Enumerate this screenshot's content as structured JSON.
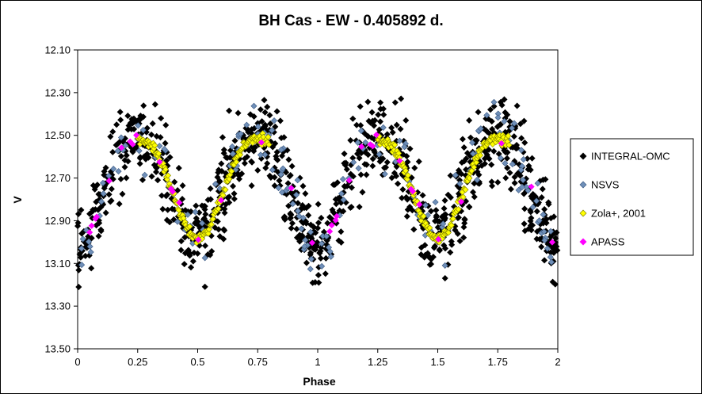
{
  "chart_data": {
    "type": "scatter",
    "title": "BH Cas - EW - 0.405892 d.",
    "xlabel": "Phase",
    "ylabel": "V",
    "xlim": [
      0,
      2
    ],
    "ylim": [
      12.1,
      13.5
    ],
    "y_inverted": true,
    "grid": false,
    "legend_position": "right",
    "x_ticks": [
      "0",
      "0.25",
      "0.5",
      "0.75",
      "1",
      "1.25",
      "1.5",
      "1.75",
      "2"
    ],
    "y_ticks": [
      "12.10",
      "12.30",
      "12.50",
      "12.70",
      "12.90",
      "13.10",
      "13.30",
      "13.50"
    ],
    "lightcurve_model": {
      "max_mag": 12.52,
      "primary_min_phase": 0.0,
      "primary_min_mag": 13.02,
      "secondary_min_phase": 0.5,
      "secondary_min_mag": 12.98,
      "period_days": 0.405892
    },
    "series": [
      {
        "name": "INTEGRAL-OMC",
        "color": "#000000",
        "marker": "diamond",
        "scatter_mag": 0.09,
        "points_per_cycle": 520
      },
      {
        "name": "NSVS",
        "color": "#6f8fb8",
        "marker": "diamond",
        "scatter_mag": 0.07,
        "points_per_cycle": 90
      },
      {
        "name": "Zola+, 2001",
        "color": "#ffff00",
        "marker": "diamond",
        "scatter_mag": 0.012,
        "points_per_cycle": 170
      },
      {
        "name": "APASS",
        "color": "#ff00ff",
        "marker": "diamond",
        "scatter_mag": 0.02,
        "points_per_cycle": 18
      }
    ]
  }
}
